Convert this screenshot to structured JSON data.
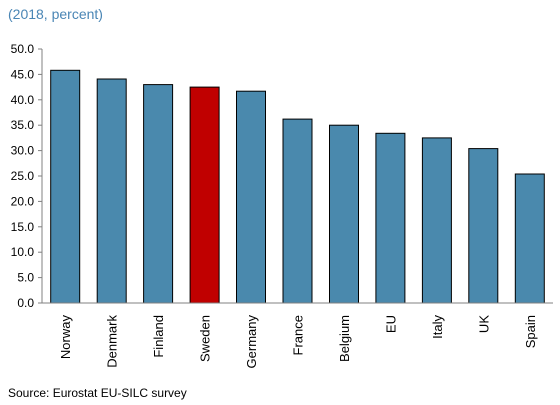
{
  "subtitle": "(2018, percent)",
  "source": "Source: Eurostat EU-SILC survey",
  "colors": {
    "bar": "#4a89ad",
    "highlight": "#c00000",
    "axis": "#808080",
    "text": "#000000",
    "subtitle": "#4a86b5"
  },
  "chart_data": {
    "type": "bar",
    "title": "",
    "xlabel": "",
    "ylabel": "",
    "categories": [
      "Norway",
      "Denmark",
      "Finland",
      "Sweden",
      "Germany",
      "France",
      "Belgium",
      "EU",
      "Italy",
      "UK",
      "Spain"
    ],
    "values": [
      45.8,
      44.1,
      43.0,
      42.5,
      41.7,
      36.2,
      35.0,
      33.4,
      32.5,
      30.4,
      25.4
    ],
    "highlight_category": "Sweden",
    "ylim": [
      0,
      50
    ],
    "yticks": [
      "0.0",
      "5.0",
      "10.0",
      "15.0",
      "20.0",
      "25.0",
      "30.0",
      "35.0",
      "40.0",
      "45.0",
      "50.0"
    ],
    "grid": false,
    "legend": "none"
  }
}
